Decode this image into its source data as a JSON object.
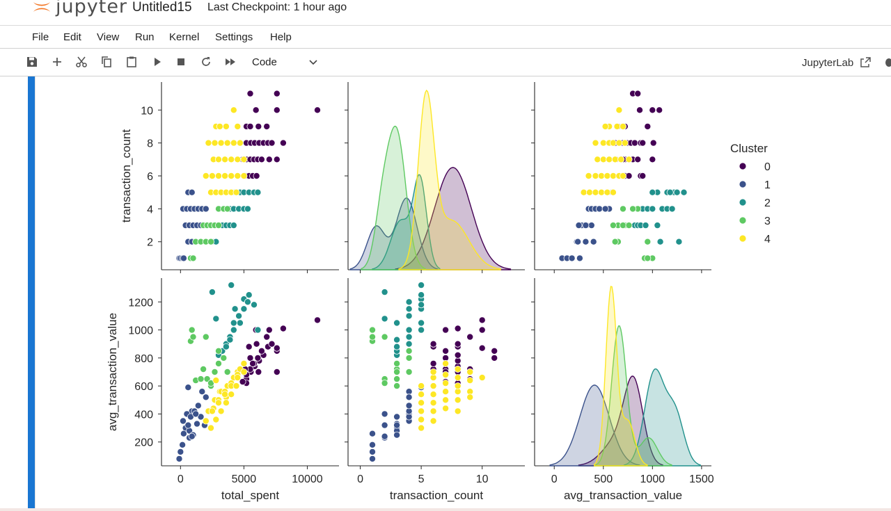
{
  "header": {
    "logo_text": "jupyter",
    "notebook_title": "Untitled15",
    "checkpoint": "Last Checkpoint: 1 hour ago"
  },
  "menu": [
    "File",
    "Edit",
    "View",
    "Run",
    "Kernel",
    "Settings",
    "Help"
  ],
  "toolbar": {
    "buttons": [
      "save-icon",
      "add-cell-icon",
      "cut-icon",
      "copy-icon",
      "paste-icon",
      "run-icon",
      "stop-icon",
      "restart-icon",
      "fast-forward-icon"
    ],
    "cell_type": "Code",
    "jupyterlab_label": "JupyterLab"
  },
  "colors": {
    "accent": "#1976d2",
    "cluster_0": "#440154",
    "cluster_1": "#3b528b",
    "cluster_2": "#21918c",
    "cluster_3": "#5ec962",
    "cluster_4": "#fde725"
  },
  "chart_data": {
    "type": "scatter",
    "kind": "pairplot",
    "hue": "Cluster",
    "legend": {
      "title": "Cluster",
      "entries": [
        "0",
        "1",
        "2",
        "3",
        "4"
      ],
      "placement": "right"
    },
    "variables": [
      "total_spent",
      "transaction_count",
      "avg_transaction_value"
    ],
    "axes": {
      "total_spent": {
        "label": "total_spent",
        "range": [
          -1500,
          12500
        ],
        "ticks": [
          "0",
          "5000",
          "10000"
        ]
      },
      "transaction_count": {
        "label": "transaction_count",
        "range": [
          -1,
          13.5
        ],
        "ticks": [
          "0",
          "5",
          "10"
        ]
      },
      "transaction_count_y": {
        "label": "transaction_count",
        "range": [
          0.3,
          11.7
        ],
        "ticks": [
          "2",
          "4",
          "6",
          "8",
          "10"
        ]
      },
      "avg_transaction_value": {
        "label": "avg_transaction_value",
        "range": [
          -200,
          1600
        ],
        "ticks": [
          "0",
          "500",
          "1000",
          "1500"
        ]
      },
      "avg_transaction_value_y": {
        "label": "avg_transaction_value",
        "range": [
          30,
          1370
        ],
        "ticks": [
          "200",
          "400",
          "600",
          "800",
          "1000",
          "1200"
        ]
      }
    },
    "series": [
      {
        "name": "0",
        "points": [
          [
            5500,
            11,
            800
          ],
          [
            7600,
            11,
            850
          ],
          [
            5950,
            10,
            1000
          ],
          [
            7600,
            10,
            870
          ],
          [
            10800,
            10,
            1070
          ],
          [
            5200,
            9,
            650
          ],
          [
            5500,
            9,
            720
          ],
          [
            6150,
            9,
            700
          ],
          [
            6800,
            9,
            950
          ],
          [
            5200,
            8,
            620
          ],
          [
            5550,
            8,
            700
          ],
          [
            5850,
            8,
            740
          ],
          [
            6200,
            8,
            780
          ],
          [
            6550,
            8,
            820
          ],
          [
            6900,
            8,
            880
          ],
          [
            7200,
            8,
            900
          ],
          [
            8100,
            8,
            1010
          ],
          [
            4900,
            7,
            630
          ],
          [
            5200,
            7,
            680
          ],
          [
            5500,
            7,
            720
          ],
          [
            5800,
            7,
            760
          ],
          [
            6100,
            7,
            800
          ],
          [
            6400,
            7,
            850
          ],
          [
            7000,
            7,
            1000
          ],
          [
            7600,
            7,
            700
          ],
          [
            5100,
            6,
            720
          ],
          [
            5400,
            6,
            880
          ],
          [
            5700,
            6,
            760
          ],
          [
            6000,
            6,
            900
          ]
        ]
      },
      {
        "name": "1",
        "points": [
          [
            600,
            5,
            590
          ],
          [
            900,
            5,
            420
          ],
          [
            200,
            4,
            350
          ],
          [
            500,
            4,
            400
          ],
          [
            800,
            4,
            380
          ],
          [
            1100,
            4,
            420
          ],
          [
            1400,
            4,
            460
          ],
          [
            1700,
            4,
            560
          ],
          [
            2000,
            4,
            520
          ],
          [
            400,
            3,
            300
          ],
          [
            700,
            3,
            280
          ],
          [
            1000,
            3,
            250
          ],
          [
            1300,
            3,
            330
          ],
          [
            1600,
            3,
            380
          ],
          [
            1900,
            3,
            320
          ],
          [
            700,
            2,
            230
          ],
          [
            600,
            2,
            320
          ],
          [
            900,
            2,
            240
          ],
          [
            1200,
            2,
            400
          ],
          [
            -100,
            1,
            80
          ],
          [
            0,
            1,
            130
          ],
          [
            150,
            1,
            180
          ],
          [
            250,
            1,
            260
          ]
        ]
      },
      {
        "name": "2",
        "points": [
          [
            4000,
            5,
            1320
          ],
          [
            4300,
            5,
            1150
          ],
          [
            4700,
            5,
            1050
          ],
          [
            5000,
            5,
            1220
          ],
          [
            5400,
            5,
            1250
          ],
          [
            5800,
            5,
            1180
          ],
          [
            6100,
            5,
            1000
          ],
          [
            3600,
            4,
            900
          ],
          [
            3900,
            4,
            950
          ],
          [
            4200,
            4,
            1000
          ],
          [
            4600,
            4,
            1100
          ],
          [
            5000,
            4,
            1150
          ],
          [
            5300,
            4,
            1200
          ],
          [
            3000,
            3,
            820
          ],
          [
            3300,
            3,
            850
          ],
          [
            3600,
            3,
            880
          ],
          [
            3900,
            3,
            930
          ],
          [
            4200,
            3,
            1050
          ],
          [
            2500,
            2,
            1270
          ],
          [
            2800,
            2,
            1080
          ]
        ]
      },
      {
        "name": "3",
        "points": [
          [
            3000,
            4,
            850
          ],
          [
            3400,
            4,
            800
          ],
          [
            3700,
            4,
            700
          ],
          [
            1800,
            3,
            720
          ],
          [
            2100,
            3,
            650
          ],
          [
            2400,
            3,
            600
          ],
          [
            2700,
            3,
            700
          ],
          [
            3000,
            3,
            760
          ],
          [
            1200,
            2,
            640
          ],
          [
            1600,
            2,
            650
          ],
          [
            2000,
            2,
            950
          ],
          [
            2400,
            2,
            620
          ],
          [
            900,
            1,
            1000
          ],
          [
            800,
            1,
            920
          ],
          [
            1000,
            1,
            950
          ]
        ]
      },
      {
        "name": "4",
        "points": [
          [
            4200,
            10,
            660
          ],
          [
            2800,
            9,
            640
          ],
          [
            3100,
            9,
            560
          ],
          [
            3600,
            9,
            520
          ],
          [
            4500,
            9,
            700
          ],
          [
            2200,
            8,
            420
          ],
          [
            2700,
            8,
            500
          ],
          [
            3200,
            8,
            560
          ],
          [
            3700,
            8,
            600
          ],
          [
            4200,
            8,
            660
          ],
          [
            4700,
            8,
            720
          ],
          [
            2600,
            7,
            440
          ],
          [
            3000,
            7,
            500
          ],
          [
            3500,
            7,
            560
          ],
          [
            4000,
            7,
            620
          ],
          [
            4500,
            7,
            680
          ],
          [
            5000,
            7,
            760
          ],
          [
            2000,
            6,
            350
          ],
          [
            2500,
            6,
            420
          ],
          [
            3000,
            6,
            480
          ],
          [
            3500,
            6,
            540
          ],
          [
            4000,
            6,
            600
          ],
          [
            4500,
            6,
            660
          ],
          [
            5000,
            6,
            700
          ],
          [
            2400,
            5,
            300
          ],
          [
            2800,
            5,
            360
          ],
          [
            3200,
            5,
            420
          ],
          [
            3600,
            5,
            480
          ],
          [
            4000,
            5,
            540
          ],
          [
            4400,
            5,
            600
          ]
        ]
      }
    ],
    "kde": {
      "transaction_count": [
        {
          "name": "0",
          "peaks": [
            [
              7.6,
              1.5,
              1.0
            ]
          ]
        },
        {
          "name": "1",
          "peaks": [
            [
              1.3,
              0.75,
              0.6
            ],
            [
              3.8,
              0.85,
              1.0
            ]
          ]
        },
        {
          "name": "2",
          "peaks": [
            [
              4.9,
              0.55,
              1.0
            ],
            [
              3.3,
              0.8,
              0.55
            ]
          ]
        },
        {
          "name": "3",
          "peaks": [
            [
              3.0,
              0.75,
              1.0
            ],
            [
              1.8,
              0.6,
              0.4
            ]
          ]
        },
        {
          "name": "4",
          "peaks": [
            [
              5.4,
              0.65,
              1.0
            ],
            [
              7.5,
              1.4,
              0.3
            ]
          ]
        }
      ],
      "avg_transaction_value": [
        {
          "name": "0",
          "peaks": [
            [
              810,
              95,
              1.0
            ],
            [
              650,
              150,
              0.35
            ]
          ]
        },
        {
          "name": "1",
          "peaks": [
            [
              410,
              150,
              1.0
            ]
          ]
        },
        {
          "name": "2",
          "peaks": [
            [
              1020,
              100,
              1.0
            ],
            [
              1230,
              90,
              0.55
            ]
          ]
        },
        {
          "name": "3",
          "peaks": [
            [
              660,
              75,
              1.0
            ],
            [
              960,
              90,
              0.2
            ]
          ]
        },
        {
          "name": "4",
          "peaks": [
            [
              580,
              55,
              1.0
            ],
            [
              750,
              70,
              0.25
            ]
          ]
        }
      ],
      "heights": {
        "transaction_count": {
          "0": 0.57,
          "1": 0.4,
          "2": 0.53,
          "3": 0.8,
          "4": 1.0
        },
        "avg_transaction_value": {
          "0": 0.5,
          "1": 0.45,
          "2": 0.54,
          "3": 0.78,
          "4": 1.0
        }
      }
    }
  }
}
